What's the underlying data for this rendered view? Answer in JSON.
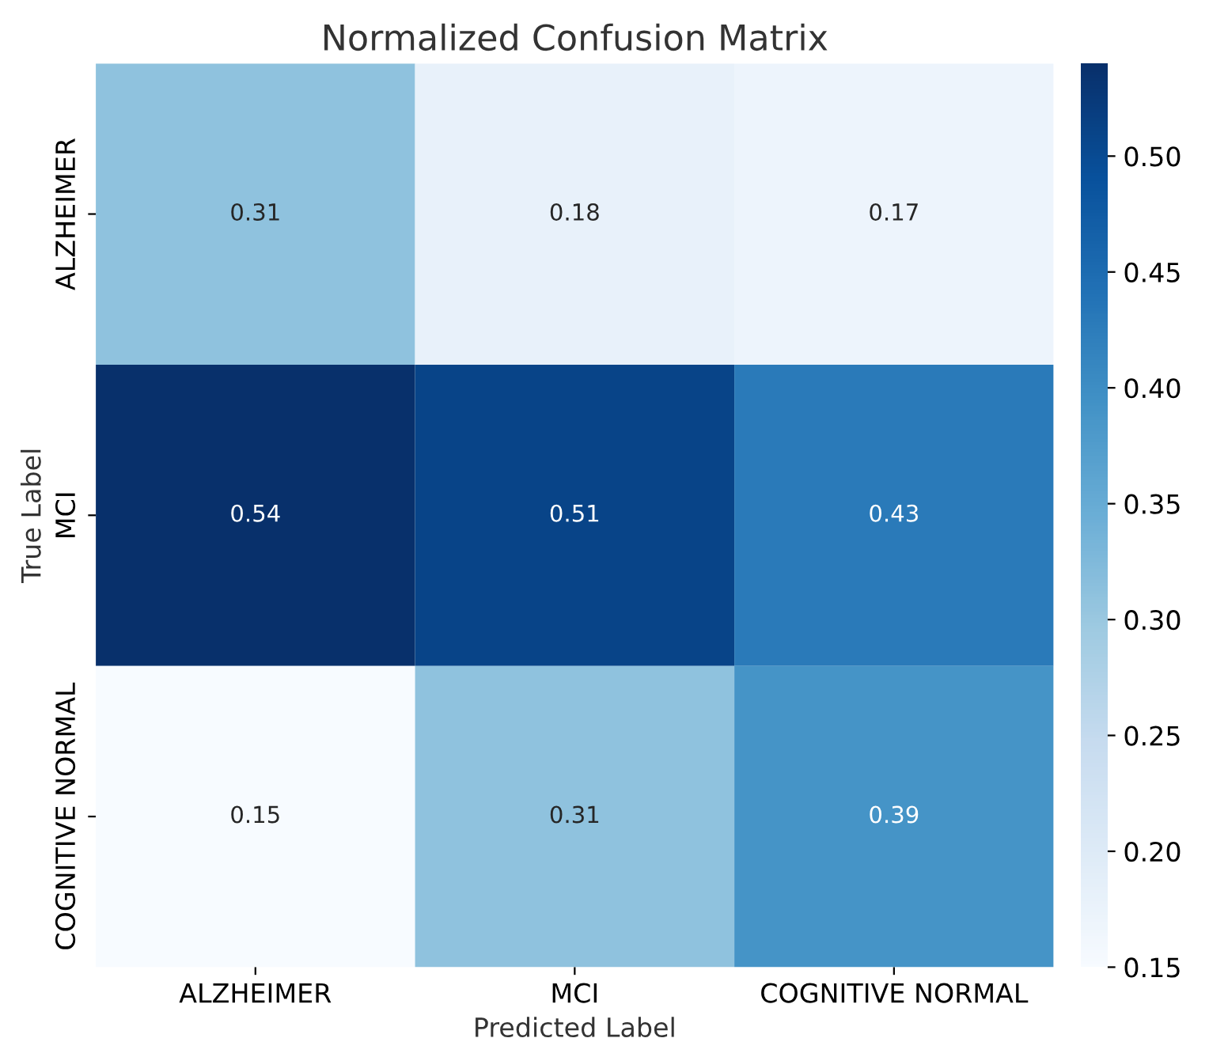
{
  "chart_data": {
    "type": "heatmap",
    "title": "Normalized Confusion Matrix",
    "xlabel": "Predicted Label",
    "ylabel": "True Label",
    "categories": [
      "ALZHEIMER",
      "MCI",
      "COGNITIVE NORMAL"
    ],
    "y_categories": [
      "ALZHEIMER",
      "MCI",
      "COGNITIVE NORMAL"
    ],
    "cells": [
      [
        0.31,
        0.18,
        0.17
      ],
      [
        0.54,
        0.51,
        0.43
      ],
      [
        0.15,
        0.31,
        0.39
      ]
    ],
    "data_labels": true,
    "clim": [
      0.15,
      0.54
    ],
    "cticks": [
      0.15,
      {
        "value": 0.2,
        "label": "0.20"
      },
      0.25,
      {
        "value": 0.3,
        "label": "0.30"
      },
      0.35,
      {
        "value": 0.4,
        "label": "0.40"
      },
      0.45,
      {
        "value": 0.5,
        "label": "0.50"
      }
    ]
  }
}
